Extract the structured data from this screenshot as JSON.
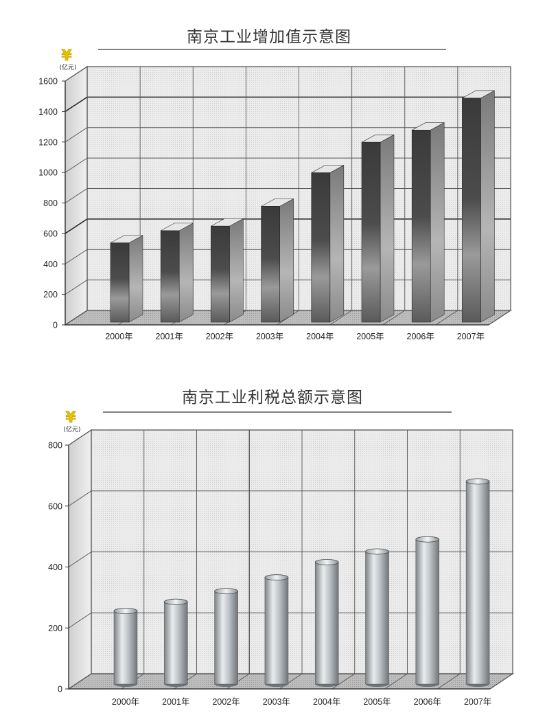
{
  "chart_data": [
    {
      "type": "bar",
      "title": "南京工业增加值示意图",
      "currency_symbol": "¥",
      "unit": "(亿元)",
      "categories": [
        "2000年",
        "2001年",
        "2002年",
        "2003年",
        "2004年",
        "2005年",
        "2006年",
        "2007年"
      ],
      "values": [
        520,
        600,
        630,
        760,
        980,
        1180,
        1260,
        1470
      ],
      "ylim": [
        0,
        1600
      ],
      "yticks": [
        "0",
        "200",
        "400",
        "600",
        "800",
        "1000",
        "1200",
        "1400",
        "1600"
      ],
      "ytick_values": [
        0,
        200,
        400,
        600,
        800,
        1000,
        1200,
        1400,
        1600
      ],
      "grid": true,
      "bar_style": "3d-box",
      "bar_color": "#555555"
    },
    {
      "type": "bar",
      "title": "南京工业利税总额示意图",
      "currency_symbol": "¥",
      "unit": "(亿元)",
      "categories": [
        "2000年",
        "2001年",
        "2002年",
        "2003年",
        "2004年",
        "2005年",
        "2006年",
        "2007年"
      ],
      "values": [
        240,
        270,
        305,
        350,
        400,
        435,
        475,
        665
      ],
      "ylim": [
        0,
        800
      ],
      "yticks": [
        "0",
        "200",
        "400",
        "600",
        "800"
      ],
      "ytick_values": [
        0,
        200,
        400,
        600,
        800
      ],
      "grid": true,
      "bar_style": "3d-cylinder",
      "bar_color": "#c8ccd0"
    }
  ]
}
